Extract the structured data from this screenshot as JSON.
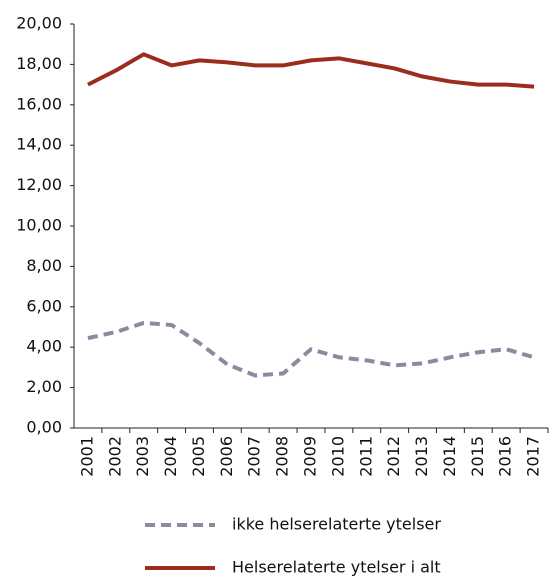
{
  "chart_data": {
    "type": "line",
    "categories": [
      "2001",
      "2002",
      "2003",
      "2004",
      "2005",
      "2006",
      "2007",
      "2008",
      "2009",
      "2010",
      "2011",
      "2012",
      "2013",
      "2014",
      "2015",
      "2016",
      "2017"
    ],
    "series": [
      {
        "name": "ikke helserelaterte ytelser",
        "color": "#8d8aa0",
        "dashed": true,
        "values": [
          4.45,
          4.75,
          5.2,
          5.1,
          4.2,
          3.15,
          2.6,
          2.7,
          3.9,
          3.5,
          3.35,
          3.1,
          3.2,
          3.5,
          3.75,
          3.9,
          3.5
        ]
      },
      {
        "name": "Helserelaterte ytelser i alt",
        "color": "#9b2d1f",
        "dashed": false,
        "values": [
          17.0,
          17.7,
          18.5,
          17.95,
          18.2,
          18.1,
          17.95,
          17.95,
          18.2,
          18.3,
          18.05,
          17.8,
          17.4,
          17.15,
          17.0,
          17.0,
          16.9
        ]
      }
    ],
    "ylim": [
      0,
      20
    ],
    "yticks": [
      {
        "value": 0,
        "label": "0,00"
      },
      {
        "value": 2,
        "label": "2,00"
      },
      {
        "value": 4,
        "label": "4,00"
      },
      {
        "value": 6,
        "label": "6,00"
      },
      {
        "value": 8,
        "label": "8,00"
      },
      {
        "value": 10,
        "label": "10,00"
      },
      {
        "value": 12,
        "label": "12,00"
      },
      {
        "value": 14,
        "label": "14,00"
      },
      {
        "value": 16,
        "label": "16,00"
      },
      {
        "value": 18,
        "label": "18,00"
      },
      {
        "value": 20,
        "label": "20,00"
      }
    ],
    "grid": false
  }
}
